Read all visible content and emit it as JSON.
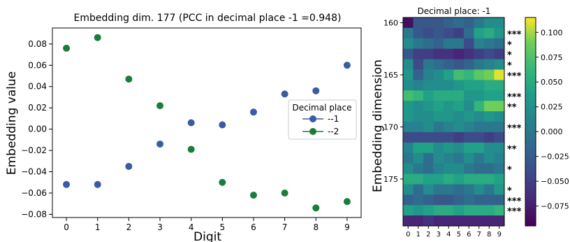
{
  "chart_data": [
    {
      "type": "scatter",
      "title": "Embedding dim. 177 (PCC in decimal place -1 =0.948)",
      "xlabel": "Digit",
      "ylabel": "Embedding value",
      "x": [
        0,
        1,
        2,
        3,
        4,
        5,
        6,
        7,
        8,
        9
      ],
      "xticks": [
        "0",
        "1",
        "2",
        "3",
        "4",
        "5",
        "6",
        "7",
        "8",
        "9"
      ],
      "ylim": [
        -0.083,
        0.095
      ],
      "yticks": [
        -0.08,
        -0.06,
        -0.04,
        -0.02,
        0.0,
        0.02,
        0.04,
        0.06,
        0.08
      ],
      "ytick_labels": [
        "−0.08",
        "−0.06",
        "−0.04",
        "−0.02",
        "0.00",
        "0.02",
        "0.04",
        "0.06",
        "0.08"
      ],
      "legend_title": "Decimal place",
      "legend_position": "center-right",
      "series": [
        {
          "name": "--1",
          "color": "#3b5ba5",
          "values": [
            -0.052,
            -0.052,
            -0.035,
            -0.014,
            0.006,
            0.004,
            0.016,
            0.033,
            0.036,
            0.06
          ]
        },
        {
          "name": "--2",
          "color": "#1a7d3c",
          "values": [
            0.076,
            0.086,
            0.047,
            0.022,
            -0.019,
            -0.05,
            -0.062,
            -0.06,
            -0.074,
            -0.068
          ]
        }
      ]
    },
    {
      "type": "heatmap",
      "title": "Decimal place: -1",
      "ylabel": "Embedding dimension",
      "colormap": "viridis",
      "x": [
        "0",
        "1",
        "2",
        "3",
        "4",
        "5",
        "6",
        "7",
        "8",
        "9"
      ],
      "row_start": 160,
      "ytick_values": [
        160,
        165,
        170,
        175
      ],
      "ytick_labels": [
        "160",
        "165",
        "170",
        "175"
      ],
      "colorbar_range": [
        -0.095,
        0.115
      ],
      "colorbar_ticks": [
        -0.075,
        -0.05,
        -0.025,
        0.0,
        0.025,
        0.05,
        0.075,
        0.1
      ],
      "colorbar_tick_labels": [
        "−0.075",
        "−0.050",
        "−0.025",
        "0.000",
        "0.025",
        "0.050",
        "0.075",
        "0.100"
      ],
      "significance": [
        "",
        "***",
        "*",
        "*",
        "*",
        "***",
        "",
        "***",
        "**",
        "",
        "***",
        "",
        "**",
        "",
        "*",
        "",
        "*",
        "***",
        "***",
        ""
      ],
      "values": [
        [
          -0.085,
          -0.03,
          -0.03,
          -0.03,
          -0.02,
          -0.01,
          -0.02,
          0.0,
          0.02,
          0.02
        ],
        [
          0.0,
          -0.03,
          -0.04,
          -0.03,
          -0.04,
          -0.05,
          -0.01,
          0.04,
          0.05,
          0.03
        ],
        [
          0.02,
          0.0,
          -0.01,
          -0.02,
          0.0,
          0.0,
          -0.04,
          0.01,
          0.0,
          -0.01
        ],
        [
          -0.03,
          -0.05,
          -0.05,
          -0.06,
          -0.06,
          -0.07,
          -0.06,
          -0.05,
          -0.04,
          -0.05
        ],
        [
          0.02,
          -0.04,
          0.0,
          -0.01,
          -0.02,
          -0.03,
          -0.02,
          0.0,
          0.01,
          0.02
        ],
        [
          0.03,
          -0.02,
          0.01,
          0.02,
          0.04,
          0.07,
          0.06,
          0.08,
          0.09,
          0.11
        ],
        [
          0.02,
          0.01,
          0.02,
          0.02,
          0.02,
          0.03,
          0.04,
          0.04,
          0.05,
          0.05
        ],
        [
          0.07,
          0.06,
          0.04,
          0.05,
          0.05,
          0.05,
          0.03,
          0.03,
          0.04,
          0.04
        ],
        [
          0.03,
          0.02,
          0.03,
          0.04,
          0.03,
          0.04,
          0.02,
          0.06,
          0.09,
          0.09
        ],
        [
          0.03,
          0.02,
          0.02,
          0.03,
          0.03,
          0.02,
          0.03,
          0.02,
          0.03,
          0.02
        ],
        [
          0.01,
          0.01,
          0.02,
          0.0,
          0.01,
          0.02,
          0.01,
          0.0,
          0.0,
          0.0
        ],
        [
          -0.04,
          -0.04,
          -0.04,
          -0.04,
          -0.04,
          -0.05,
          -0.04,
          -0.04,
          -0.05,
          -0.04
        ],
        [
          0.01,
          0.04,
          0.04,
          0.02,
          0.03,
          0.02,
          0.04,
          0.04,
          0.02,
          0.02
        ],
        [
          0.0,
          0.02,
          -0.01,
          0.02,
          0.01,
          0.0,
          0.02,
          0.0,
          0.02,
          0.01
        ],
        [
          0.02,
          0.0,
          -0.01,
          0.01,
          0.02,
          0.02,
          0.0,
          -0.01,
          -0.01,
          0.0
        ],
        [
          0.05,
          0.05,
          0.04,
          0.04,
          0.05,
          0.04,
          0.05,
          0.05,
          0.05,
          0.04
        ],
        [
          0.02,
          -0.01,
          0.02,
          0.0,
          0.0,
          -0.01,
          0.0,
          0.02,
          0.0,
          0.03
        ],
        [
          -0.02,
          -0.01,
          -0.02,
          -0.03,
          -0.03,
          -0.02,
          -0.01,
          -0.02,
          -0.02,
          -0.02
        ],
        [
          0.04,
          0.03,
          0.04,
          0.05,
          0.05,
          0.04,
          0.05,
          0.05,
          0.05,
          0.06
        ],
        [
          -0.07,
          -0.07,
          -0.06,
          -0.07,
          -0.07,
          -0.07,
          -0.07,
          -0.07,
          -0.07,
          -0.07
        ]
      ]
    }
  ]
}
